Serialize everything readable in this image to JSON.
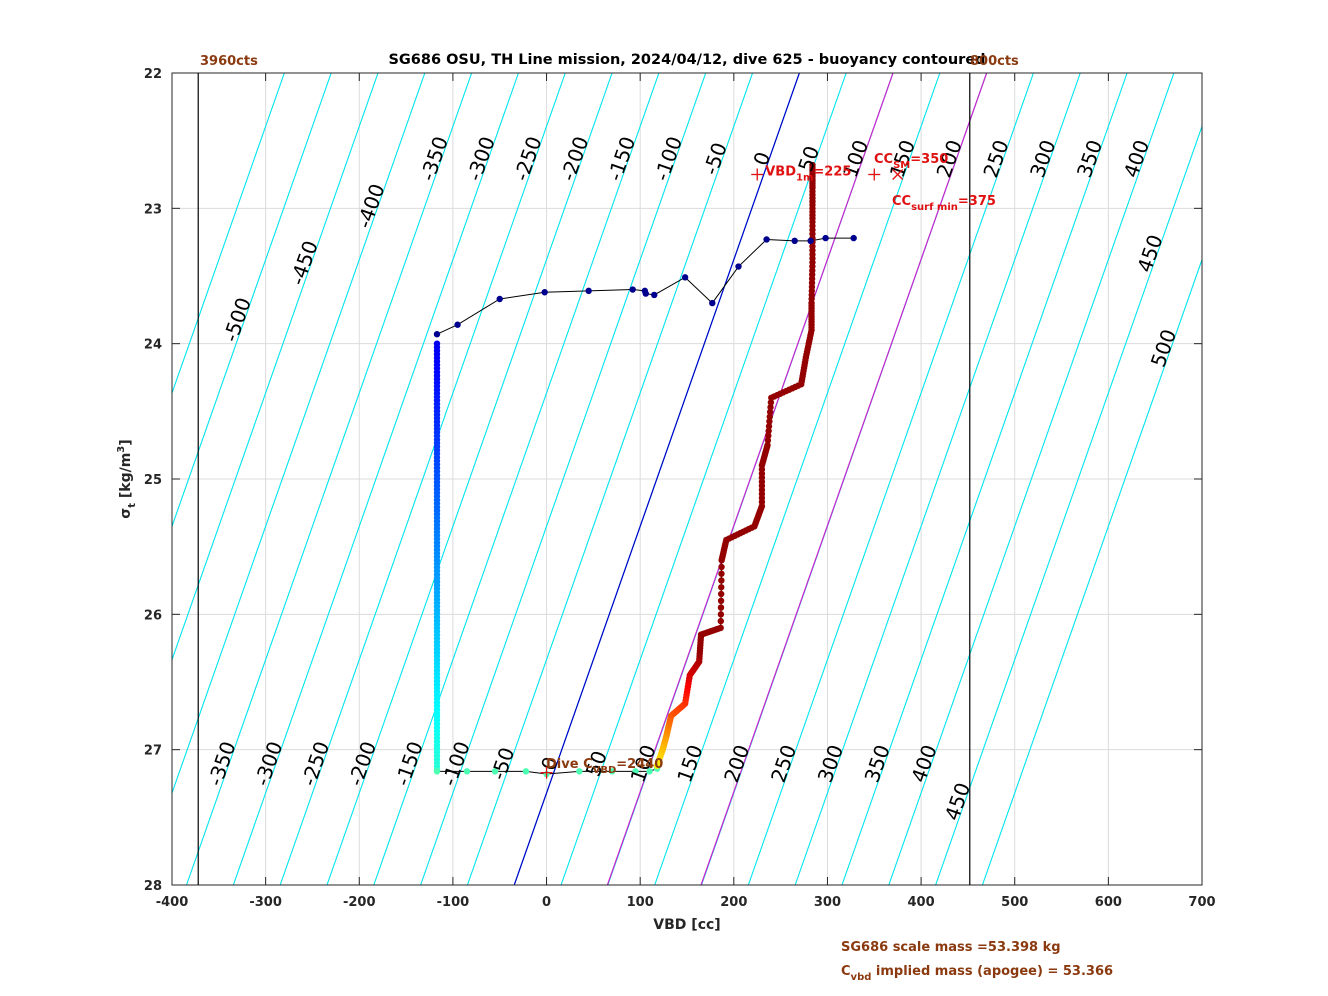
{
  "chart_data": {
    "type": "scatter",
    "title": "SG686 OSU, TH Line mission, 2024/04/12, dive 625 - buoyancy contoured",
    "xlabel": "VBD [cc]",
    "ylabel_main": "σ",
    "ylabel_sub": "t",
    "ylabel_unit": " [kg/m",
    "ylabel_sup": "3",
    "ylabel_close": "]",
    "xlim": [
      -400,
      700
    ],
    "ylim": [
      28,
      22
    ],
    "y_reversed": true,
    "grid": true,
    "x_ticks": [
      -400,
      -300,
      -200,
      -100,
      0,
      100,
      200,
      300,
      400,
      500,
      600,
      700
    ],
    "y_ticks": [
      22,
      23,
      24,
      25,
      26,
      27,
      28
    ],
    "vbd_limits": {
      "min_cts_label": "3960cts",
      "max_cts_label": "800cts",
      "min_vbd": -372,
      "max_vbd": 452
    },
    "buoyancy_contours": {
      "color": "#00e5ee",
      "values": [
        -550,
        -500,
        -450,
        -400,
        -350,
        -300,
        -250,
        -200,
        -150,
        -100,
        -50,
        0,
        50,
        100,
        150,
        200,
        250,
        300,
        350,
        400,
        450,
        500
      ],
      "x_at_bottom_for_zero": -34.5,
      "x_per_sigma_step": 61.5,
      "spacing_cc": 50,
      "top_labels": [
        "-500",
        "-450",
        "-400",
        "-350",
        "-300",
        "-250",
        "-200",
        "-150",
        "-100",
        "-50",
        "0",
        "50",
        "100",
        "150",
        "200",
        "250",
        "300",
        "350",
        "400",
        "450",
        "500"
      ],
      "bottom_labels": [
        "-350",
        "-300",
        "-250",
        "-200",
        "-150",
        "-100",
        "-50",
        "0",
        "50",
        "100",
        "150",
        "200",
        "250",
        "300",
        "350",
        "400",
        "450"
      ]
    },
    "neutral_line": {
      "color": "#0000c8",
      "x_at_28": -34.5,
      "x_at_22": 270
    },
    "magenta_lines": [
      {
        "color": "#cc22cc",
        "x_at_28": 65,
        "x_at_22": 370
      },
      {
        "color": "#cc22cc",
        "x_at_28": 165,
        "x_at_22": 470
      }
    ],
    "markers": {
      "vbd_1m": {
        "label_main": "VBD",
        "label_sub": "1m",
        "label_rest": "=225",
        "x": 225,
        "y": 22.75
      },
      "cc_sm": {
        "label_main": "CC",
        "label_sub": "SM",
        "label_rest": "=350",
        "x": 350,
        "y": 22.75
      },
      "cc_surf_min": {
        "label_main": "CC",
        "label_sub": "surf min",
        "label_rest": "=375",
        "x": 375,
        "y": 22.75
      },
      "dive_c_vbd": {
        "label_pre": "Dive C",
        "label_sub": "VBD",
        "label_rest": "=2440",
        "x": 0,
        "y": 27.17
      }
    },
    "climb_series": {
      "name": "climb",
      "points": [
        [
          -117,
          23.93
        ],
        [
          -95,
          23.86
        ],
        [
          -50,
          23.67
        ],
        [
          -2,
          23.62
        ],
        [
          45,
          23.61
        ],
        [
          92,
          23.6
        ],
        [
          105,
          23.61
        ],
        [
          106,
          23.63
        ],
        [
          115,
          23.64
        ],
        [
          148,
          23.51
        ],
        [
          177,
          23.7
        ],
        [
          205,
          23.43
        ],
        [
          235,
          23.23
        ],
        [
          265,
          23.24
        ],
        [
          282,
          23.24
        ],
        [
          298,
          23.22
        ],
        [
          328,
          23.22
        ]
      ]
    },
    "dive_series": {
      "name": "dive",
      "points": [
        [
          284,
          22.68
        ],
        [
          284,
          22.85
        ],
        [
          284,
          23.1
        ],
        [
          284,
          23.4
        ],
        [
          283,
          23.7
        ],
        [
          283,
          23.9
        ],
        [
          277,
          24.1
        ],
        [
          272,
          24.3
        ],
        [
          240,
          24.4
        ],
        [
          236,
          24.75
        ],
        [
          230,
          24.9
        ],
        [
          230,
          25.2
        ],
        [
          222,
          25.35
        ],
        [
          192,
          25.45
        ],
        [
          187,
          25.6
        ],
        [
          186,
          26.1
        ],
        [
          165,
          26.15
        ],
        [
          163,
          26.35
        ],
        [
          153,
          26.45
        ],
        [
          148,
          26.66
        ],
        [
          133,
          26.75
        ],
        [
          128,
          26.9
        ],
        [
          124,
          27.0
        ],
        [
          118,
          27.12
        ]
      ]
    },
    "descent_column": {
      "x": -117,
      "y_from": 24.0,
      "y_to": 27.15
    },
    "bottom_series": {
      "points": [
        [
          -117,
          27.16
        ],
        [
          -85,
          27.16
        ],
        [
          -55,
          27.16
        ],
        [
          -22,
          27.16
        ],
        [
          0,
          27.18
        ],
        [
          35,
          27.16
        ],
        [
          70,
          27.16
        ],
        [
          95,
          27.16
        ],
        [
          110,
          27.16
        ],
        [
          118,
          27.14
        ]
      ]
    }
  },
  "footnotes": {
    "scale_mass": "SG686 scale mass =53.398 kg",
    "implied_mass_pre": "C",
    "implied_mass_sub": "vbd",
    "implied_mass_rest": " implied mass (apogee) = 53.366"
  }
}
